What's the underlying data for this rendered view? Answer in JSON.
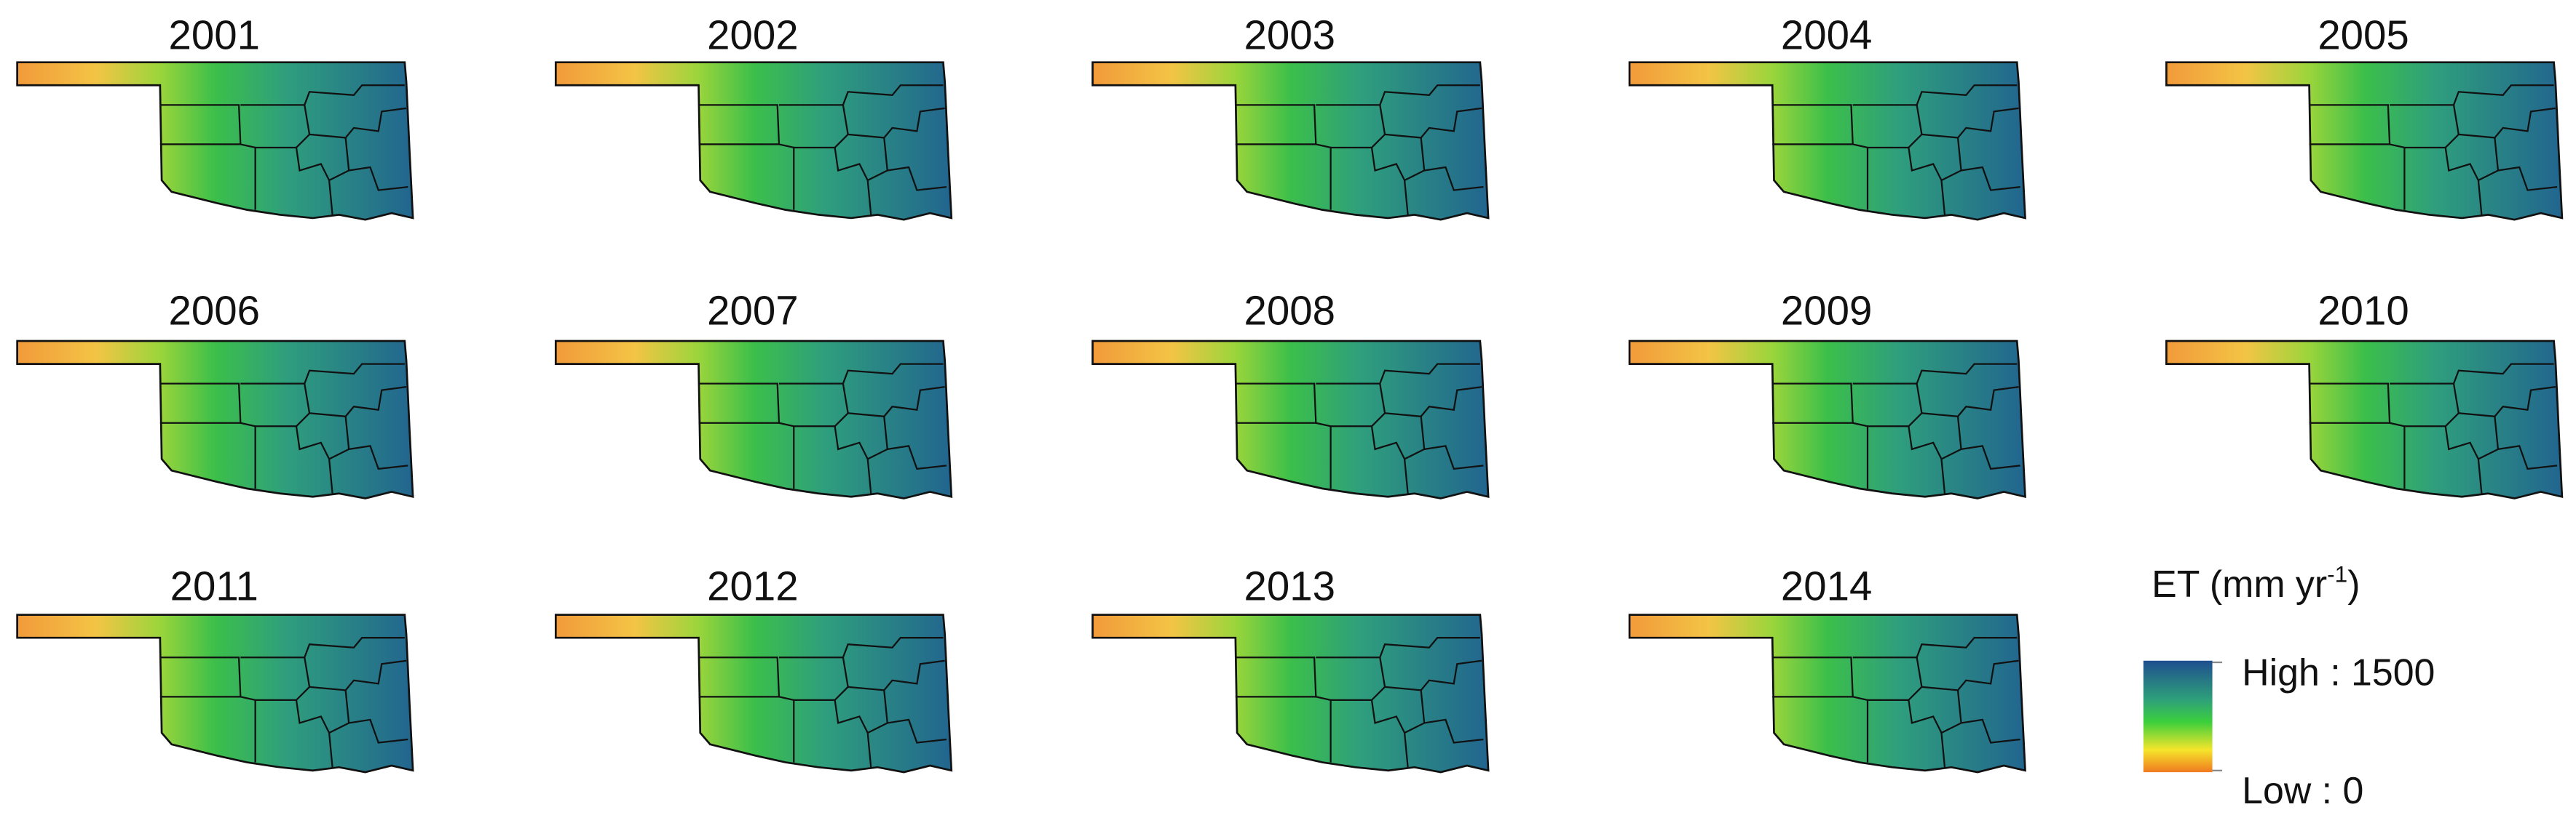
{
  "panels": [
    "2001",
    "2002",
    "2003",
    "2004",
    "2005",
    "2006",
    "2007",
    "2008",
    "2009",
    "2010",
    "2011",
    "2012",
    "2013",
    "2014"
  ],
  "legend": {
    "title": "ET (mm yr",
    "title_superscript": "-1",
    "title_end": ")",
    "high_label": "High : 1500",
    "low_label": "Low : 0"
  }
}
